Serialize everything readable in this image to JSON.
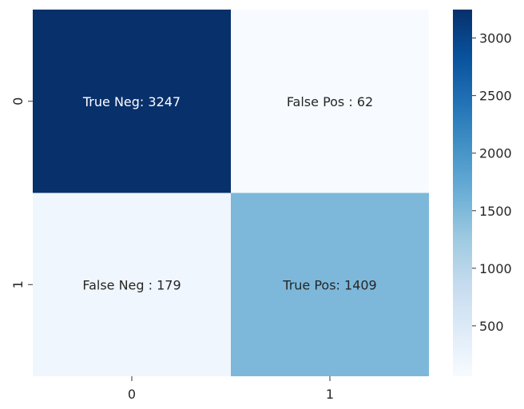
{
  "chart_data": {
    "type": "heatmap",
    "title": "",
    "xlabel": "",
    "ylabel": "",
    "x_categories": [
      "0",
      "1"
    ],
    "y_categories": [
      "0",
      "1"
    ],
    "cells": [
      {
        "row": 0,
        "col": 0,
        "value": 3247,
        "label": "True Neg: 3247",
        "color": "#08306b",
        "text_color": "#ffffff"
      },
      {
        "row": 0,
        "col": 1,
        "value": 62,
        "label": "False Pos : 62",
        "color": "#f7fbff",
        "text_color": "#262626"
      },
      {
        "row": 1,
        "col": 0,
        "value": 179,
        "label": "False Neg : 179",
        "color": "#f0f6fd",
        "text_color": "#262626"
      },
      {
        "row": 1,
        "col": 1,
        "value": 1409,
        "label": "True Pos: 1409",
        "color": "#7db8da",
        "text_color": "#262626"
      }
    ],
    "colormap": "Blues",
    "colorbar": {
      "min": 62,
      "max": 3247,
      "ticks": [
        500,
        1000,
        1500,
        2000,
        2500,
        3000
      ],
      "tick_labels": [
        "500",
        "1000",
        "1500",
        "2000",
        "2500",
        "3000"
      ]
    }
  }
}
